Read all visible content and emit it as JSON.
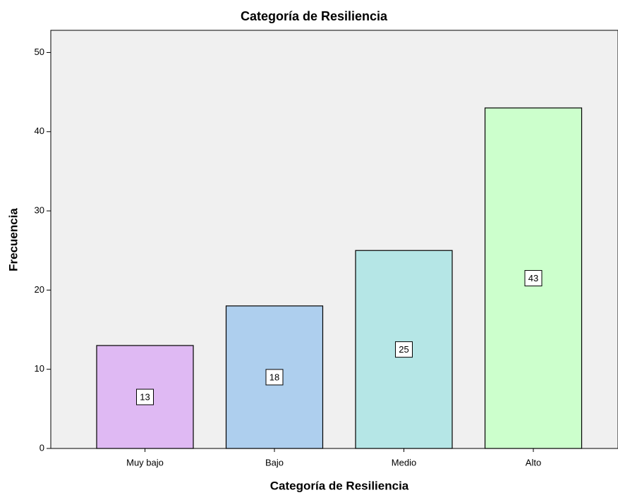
{
  "chart_data": {
    "type": "bar",
    "title": "Categoría de Resiliencia",
    "x_label": "Categoría de Resiliencia",
    "y_label": "Frecuencia",
    "categories": [
      "Muy bajo",
      "Bajo",
      "Medio",
      "Alto"
    ],
    "values": [
      13,
      18,
      25,
      43
    ],
    "colors": [
      "#dfb9f3",
      "#aecfee",
      "#b5e6e6",
      "#ccffcc"
    ],
    "ylim": [
      0,
      52.8
    ],
    "yticks": [
      0,
      10,
      20,
      30,
      40,
      50
    ],
    "grid": false
  }
}
